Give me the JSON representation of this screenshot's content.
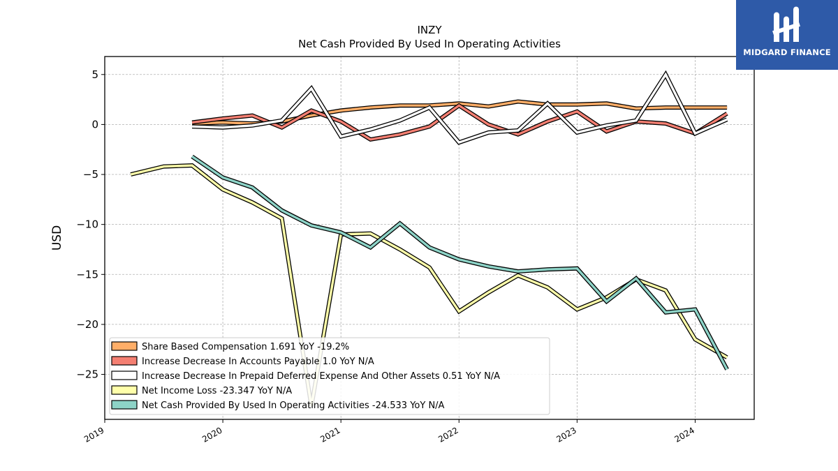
{
  "chart_data": {
    "type": "line",
    "title": "INZY",
    "subtitle": "Net Cash Provided By Used In Operating Activities",
    "ylabel": "USD",
    "xlabel": "",
    "ylim": [
      -29.5,
      6.8
    ],
    "xlim": [
      2019.0,
      2024.5
    ],
    "yticks": [
      5,
      0,
      -5,
      -10,
      -15,
      -20,
      -25
    ],
    "xticks": [
      "2019",
      "2020",
      "2021",
      "2022",
      "2023",
      "2024"
    ],
    "grid": true,
    "legend_position": "lower-left",
    "series": [
      {
        "name": "Share Based Compensation",
        "legend": "Share Based Compensation  1.691 YoY -19.2%",
        "color": "#ffae68",
        "x": [
          2019.74,
          2020.0,
          2020.25,
          2020.5,
          2020.75,
          2021.0,
          2021.25,
          2021.5,
          2021.75,
          2022.0,
          2022.25,
          2022.5,
          2022.75,
          2023.0,
          2023.25,
          2023.5,
          2023.75,
          2024.0,
          2024.27
        ],
        "values": [
          0.1,
          0.2,
          0.1,
          0.3,
          0.9,
          1.4,
          1.7,
          1.9,
          1.9,
          2.1,
          1.8,
          2.3,
          2.0,
          2.0,
          2.1,
          1.6,
          1.7,
          1.7,
          1.7
        ]
      },
      {
        "name": "Increase Decrease In Accounts Payable",
        "legend": "Increase Decrease In Accounts Payable  1.0 YoY N/A",
        "color": "#f47f72",
        "x": [
          2019.74,
          2020.0,
          2020.25,
          2020.5,
          2020.75,
          2021.0,
          2021.25,
          2021.5,
          2021.75,
          2022.0,
          2022.25,
          2022.5,
          2022.75,
          2023.0,
          2023.25,
          2023.5,
          2023.75,
          2024.0,
          2024.27
        ],
        "values": [
          0.2,
          0.6,
          0.9,
          -0.3,
          1.4,
          0.3,
          -1.5,
          -1.0,
          -0.2,
          1.9,
          0.0,
          -1.0,
          0.3,
          1.3,
          -0.7,
          0.3,
          0.1,
          -0.9,
          1.1
        ]
      },
      {
        "name": "Increase Decrease In Prepaid Deferred Expense And Other Assets",
        "legend": "Increase Decrease In Prepaid Deferred Expense And Other Assets  0.51 YoY N/A",
        "color": "#ffffff",
        "x": [
          2019.74,
          2020.0,
          2020.25,
          2020.5,
          2020.75,
          2021.0,
          2021.25,
          2021.5,
          2021.75,
          2022.0,
          2022.25,
          2022.5,
          2022.75,
          2023.0,
          2023.25,
          2023.5,
          2023.75,
          2024.0,
          2024.27
        ],
        "values": [
          -0.2,
          -0.3,
          -0.1,
          0.4,
          3.6,
          -1.2,
          -0.5,
          0.4,
          1.7,
          -1.8,
          -0.8,
          -0.6,
          2.1,
          -0.8,
          -0.1,
          0.4,
          5.0,
          -0.9,
          0.5
        ]
      },
      {
        "name": "Net Income Loss",
        "legend": "Net Income Loss  -23.347 YoY N/A",
        "color": "#ffffaa",
        "x": [
          2019.22,
          2019.5,
          2019.74,
          2020.0,
          2020.25,
          2020.5,
          2020.75,
          2021.0,
          2021.25,
          2021.5,
          2021.75,
          2022.0,
          2022.25,
          2022.5,
          2022.75,
          2023.0,
          2023.25,
          2023.5,
          2023.75,
          2024.0,
          2024.27
        ],
        "values": [
          -5.0,
          -4.2,
          -4.1,
          -6.5,
          -7.8,
          -9.4,
          -28.2,
          -11.0,
          -10.9,
          -12.5,
          -14.3,
          -18.7,
          -16.8,
          -15.1,
          -16.3,
          -18.5,
          -17.3,
          -15.5,
          -16.6,
          -21.5,
          -23.3
        ]
      },
      {
        "name": "Net Cash Provided By Used In Operating Activities",
        "legend": "Net Cash Provided By Used In Operating Activities  -24.533 YoY N/A",
        "color": "#8dd3c7",
        "x": [
          2019.74,
          2020.0,
          2020.25,
          2020.5,
          2020.75,
          2021.0,
          2021.25,
          2021.5,
          2021.75,
          2022.0,
          2022.25,
          2022.5,
          2022.75,
          2023.0,
          2023.25,
          2023.5,
          2023.75,
          2024.0,
          2024.27
        ],
        "values": [
          -3.2,
          -5.3,
          -6.3,
          -8.6,
          -10.1,
          -10.8,
          -12.3,
          -9.9,
          -12.3,
          -13.5,
          -14.2,
          -14.7,
          -14.5,
          -14.4,
          -17.7,
          -15.4,
          -18.8,
          -18.5,
          -24.5
        ]
      }
    ]
  },
  "logo": {
    "text": "MIDGARD FINANCE"
  }
}
